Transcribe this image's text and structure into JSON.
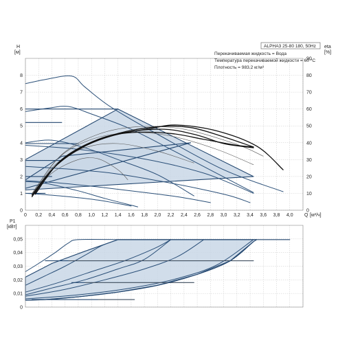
{
  "title_box": {
    "model": "ALPHA3 25-80 180, 50Hz",
    "lines": [
      "Перекачиваемая жидкость = Вода",
      "Температура перекачиваемой жидкости = 60 °C",
      "Плотность = 983.2 кг/м³"
    ]
  },
  "axes": {
    "h_label": "H",
    "h_unit": "[м]",
    "eta_label": "eta",
    "eta_unit": "[%]",
    "q_label": "Q",
    "q_unit": "[м³/ч]",
    "p_label": "P1",
    "p_unit": "[кВт]"
  },
  "colors": {
    "fill": "#c9d7e6",
    "edge": "#22466f",
    "curve": "#2a4f78",
    "eta": "#111111",
    "thin": "#555555"
  },
  "chart_data": [
    {
      "type": "line",
      "name": "head",
      "xlim": [
        0,
        4.2
      ],
      "ylim": [
        0,
        9
      ],
      "eta_lim": [
        0,
        90
      ],
      "x_ticks": [
        "0",
        "0,2",
        "0,4",
        "0,6",
        "0,8",
        "1,0",
        "1,2",
        "1,4",
        "1,6",
        "1,8",
        "2,0",
        "2,2",
        "2,4",
        "2,6",
        "2,8",
        "3,0",
        "3,2",
        "3,4",
        "3,6",
        "3,8",
        "4,0"
      ],
      "y_ticks": [
        "0",
        "1",
        "2",
        "3",
        "4",
        "5",
        "6",
        "7",
        "8"
      ],
      "eta_ticks": [
        "0",
        "10",
        "20",
        "30",
        "40",
        "50",
        "60",
        "70",
        "80",
        "90"
      ],
      "regions": [
        {
          "points": [
            [
              0,
              3.0
            ],
            [
              1.4,
              6.0
            ],
            [
              3.45,
              2.0
            ],
            [
              0,
              1.2
            ]
          ]
        },
        {
          "points": [
            [
              0,
              1.8
            ],
            [
              0.55,
              3.2
            ],
            [
              2.5,
              4.0
            ],
            [
              0,
              1.3
            ]
          ]
        }
      ],
      "series": [
        {
          "style": "curve",
          "points": [
            [
              0,
              7.5
            ],
            [
              0.3,
              7.75
            ],
            [
              0.7,
              7.95
            ],
            [
              0.9,
              7.3
            ],
            [
              1.3,
              6.1
            ],
            [
              2.0,
              4.5
            ],
            [
              3.0,
              2.4
            ],
            [
              3.9,
              1.1
            ]
          ]
        },
        {
          "style": "curve",
          "points": [
            [
              0,
              5.85
            ],
            [
              0.35,
              6.05
            ],
            [
              0.65,
              6.15
            ],
            [
              1.0,
              5.7
            ],
            [
              1.6,
              4.8
            ],
            [
              2.4,
              3.2
            ],
            [
              3.45,
              1.05
            ]
          ]
        },
        {
          "style": "curve",
          "points": [
            [
              0,
              4.0
            ],
            [
              0.4,
              4.15
            ],
            [
              0.9,
              3.7
            ],
            [
              1.4,
              3.0
            ],
            [
              2.0,
              2.1
            ],
            [
              2.55,
              0.85
            ]
          ]
        },
        {
          "style": "curve",
          "points": [
            [
              0,
              1.7
            ],
            [
              0.3,
              1.6
            ],
            [
              0.8,
              1.15
            ],
            [
              1.2,
              0.7
            ],
            [
              1.7,
              0.2
            ]
          ]
        },
        {
          "style": "edge",
          "points": [
            [
              0,
              6.0
            ],
            [
              1.4,
              6.0
            ]
          ]
        },
        {
          "style": "edge",
          "points": [
            [
              0,
              5.2
            ],
            [
              0.55,
              5.2
            ]
          ]
        },
        {
          "style": "edge",
          "points": [
            [
              0,
              3.95
            ],
            [
              0.8,
              3.95
            ]
          ]
        },
        {
          "style": "edge",
          "points": [
            [
              0,
              2.95
            ],
            [
              0.55,
              2.95
            ]
          ]
        },
        {
          "style": "edge",
          "points": [
            [
              0,
              2.0
            ],
            [
              0.4,
              2.0
            ]
          ]
        },
        {
          "style": "edge",
          "points": [
            [
              0,
              1.0
            ],
            [
              0.3,
              1.0
            ]
          ]
        },
        {
          "style": "curve",
          "points": [
            [
              0,
              1.0
            ],
            [
              0.3,
              0.92
            ],
            [
              0.7,
              0.78
            ],
            [
              1.1,
              0.6
            ],
            [
              1.6,
              0.25
            ]
          ]
        },
        {
          "style": "curve",
          "points": [
            [
              0,
              1.75
            ],
            [
              0.5,
              1.62
            ],
            [
              1.1,
              1.38
            ],
            [
              1.7,
              1.1
            ],
            [
              2.3,
              0.8
            ],
            [
              2.8,
              0.45
            ]
          ]
        },
        {
          "style": "curve",
          "points": [
            [
              0,
              2.6
            ],
            [
              0.6,
              2.45
            ],
            [
              1.3,
              2.2
            ],
            [
              2.0,
              1.75
            ],
            [
              2.6,
              1.3
            ],
            [
              3.1,
              0.85
            ],
            [
              3.4,
              0.45
            ]
          ]
        },
        {
          "style": "curve",
          "points": [
            [
              0,
              3.85
            ],
            [
              0.7,
              3.65
            ],
            [
              1.4,
              3.3
            ],
            [
              2.1,
              2.8
            ],
            [
              2.7,
              2.2
            ],
            [
              3.1,
              1.6
            ],
            [
              3.45,
              1.0
            ]
          ]
        },
        {
          "style": "thin",
          "points": [
            [
              0.1,
              0.85
            ],
            [
              0.4,
              2.2
            ],
            [
              0.8,
              3.0
            ],
            [
              1.1,
              3.05
            ],
            [
              1.4,
              2.4
            ],
            [
              1.55,
              1.8
            ]
          ]
        },
        {
          "style": "thin",
          "points": [
            [
              0.1,
              0.9
            ],
            [
              0.45,
              2.7
            ],
            [
              0.9,
              3.7
            ],
            [
              1.4,
              3.95
            ],
            [
              2.0,
              3.5
            ],
            [
              2.55,
              2.8
            ]
          ]
        },
        {
          "style": "thin",
          "points": [
            [
              0.1,
              0.95
            ],
            [
              0.5,
              3.1
            ],
            [
              1.0,
              4.2
            ],
            [
              1.6,
              4.6
            ],
            [
              2.2,
              4.4
            ],
            [
              2.9,
              3.6
            ],
            [
              3.45,
              2.7
            ]
          ]
        },
        {
          "style": "thin",
          "points": [
            [
              0.1,
              1.0
            ],
            [
              0.55,
              3.3
            ],
            [
              1.1,
              4.5
            ],
            [
              1.7,
              4.95
            ],
            [
              2.4,
              4.8
            ],
            [
              3.2,
              3.9
            ],
            [
              3.6,
              3.2
            ]
          ]
        },
        {
          "style": "eta",
          "points": [
            [
              0.1,
              0.8
            ],
            [
              0.4,
              2.4
            ],
            [
              0.8,
              3.6
            ],
            [
              1.3,
              4.4
            ],
            [
              1.9,
              4.85
            ],
            [
              2.3,
              5.05
            ],
            [
              2.9,
              4.7
            ],
            [
              3.5,
              3.8
            ],
            [
              3.9,
              2.4
            ]
          ]
        },
        {
          "style": "eta",
          "points": [
            [
              0.1,
              0.9
            ],
            [
              0.45,
              2.6
            ],
            [
              0.9,
              3.8
            ],
            [
              1.4,
              4.55
            ],
            [
              2.0,
              4.95
            ],
            [
              2.5,
              4.9
            ],
            [
              3.0,
              4.35
            ],
            [
              3.45,
              3.75
            ]
          ]
        },
        {
          "style": "eta",
          "points": [
            [
              0.15,
              0.95
            ],
            [
              0.5,
              2.8
            ],
            [
              1.0,
              4.0
            ],
            [
              1.5,
              4.6
            ],
            [
              2.1,
              4.8
            ],
            [
              2.6,
              4.45
            ],
            [
              3.0,
              3.95
            ],
            [
              3.45,
              3.7
            ]
          ]
        },
        {
          "style": "eta",
          "points": [
            [
              0.15,
              1.0
            ],
            [
              0.55,
              3.0
            ],
            [
              1.1,
              4.2
            ],
            [
              1.6,
              4.6
            ],
            [
              2.2,
              4.55
            ],
            [
              2.7,
              4.2
            ],
            [
              3.2,
              3.85
            ],
            [
              3.45,
              3.75
            ]
          ]
        }
      ]
    },
    {
      "type": "line",
      "name": "power",
      "xlim": [
        0,
        4.2
      ],
      "ylim": [
        0,
        0.06
      ],
      "y_ticks": [
        "0",
        "0,01",
        "0,02",
        "0,03",
        "0,04",
        "0,05"
      ],
      "regions": [
        {
          "points": [
            [
              0,
              0.005
            ],
            [
              0.3,
              0.0055
            ],
            [
              0.8,
              0.0075
            ],
            [
              1.4,
              0.011
            ],
            [
              2.0,
              0.016
            ],
            [
              2.6,
              0.024
            ],
            [
              3.1,
              0.034
            ],
            [
              3.45,
              0.048
            ],
            [
              3.5,
              0.0495
            ],
            [
              1.4,
              0.0495
            ],
            [
              0.9,
              0.041
            ],
            [
              0.4,
              0.032
            ],
            [
              0,
              0.022
            ]
          ]
        }
      ],
      "series": [
        {
          "style": "edge",
          "points": [
            [
              1.4,
              0.0495
            ],
            [
              4.0,
              0.0495
            ]
          ]
        },
        {
          "style": "curve",
          "points": [
            [
              0,
              0.026
            ],
            [
              0.2,
              0.032
            ],
            [
              0.45,
              0.04
            ],
            [
              0.65,
              0.047
            ],
            [
              0.8,
              0.0495
            ],
            [
              1.4,
              0.0495
            ]
          ]
        },
        {
          "style": "curve",
          "points": [
            [
              0,
              0.016
            ],
            [
              0.3,
              0.023
            ],
            [
              0.6,
              0.03
            ],
            [
              0.9,
              0.038
            ],
            [
              1.15,
              0.045
            ],
            [
              1.4,
              0.0495
            ]
          ]
        },
        {
          "style": "curve",
          "points": [
            [
              0,
              0.011
            ],
            [
              0.5,
              0.018
            ],
            [
              1.0,
              0.026
            ],
            [
              1.5,
              0.034
            ],
            [
              1.95,
              0.043
            ],
            [
              2.2,
              0.0495
            ]
          ]
        },
        {
          "style": "curve",
          "points": [
            [
              0,
              0.008
            ],
            [
              0.6,
              0.013
            ],
            [
              1.2,
              0.02
            ],
            [
              1.8,
              0.028
            ],
            [
              2.3,
              0.037
            ],
            [
              2.7,
              0.0495
            ]
          ]
        },
        {
          "style": "curve",
          "points": [
            [
              0,
              0.006
            ],
            [
              0.8,
              0.009
            ],
            [
              1.6,
              0.014
            ],
            [
              2.3,
              0.021
            ],
            [
              2.9,
              0.031
            ],
            [
              3.45,
              0.0495
            ]
          ]
        },
        {
          "style": "curve",
          "points": [
            [
              0,
              0.009
            ],
            [
              0.4,
              0.014
            ],
            [
              0.9,
              0.02
            ],
            [
              1.4,
              0.028
            ],
            [
              1.8,
              0.035
            ],
            [
              2.2,
              0.0495
            ]
          ]
        },
        {
          "style": "edge",
          "points": [
            [
              0.3,
              0.034
            ],
            [
              3.45,
              0.034
            ]
          ]
        },
        {
          "style": "edge",
          "points": [
            [
              0.7,
              0.018
            ],
            [
              2.55,
              0.018
            ]
          ]
        },
        {
          "style": "edge",
          "points": [
            [
              0.1,
              0.0055
            ],
            [
              1.65,
              0.0055
            ]
          ]
        },
        {
          "style": "thin",
          "points": [
            [
              0.65,
              0.034
            ],
            [
              3.45,
              0.034
            ]
          ]
        },
        {
          "style": "thin",
          "points": [
            [
              0.9,
              0.018
            ],
            [
              2.55,
              0.018
            ]
          ]
        },
        {
          "style": "thin",
          "points": [
            [
              1.1,
              0.0055
            ],
            [
              1.65,
              0.0055
            ]
          ]
        },
        {
          "style": "edge",
          "points": [
            [
              0,
              0.005
            ],
            [
              0.3,
              0.0055
            ],
            [
              0.8,
              0.0075
            ],
            [
              1.4,
              0.011
            ],
            [
              2.0,
              0.016
            ],
            [
              2.6,
              0.024
            ],
            [
              3.1,
              0.034
            ],
            [
              3.45,
              0.048
            ]
          ]
        }
      ]
    }
  ]
}
